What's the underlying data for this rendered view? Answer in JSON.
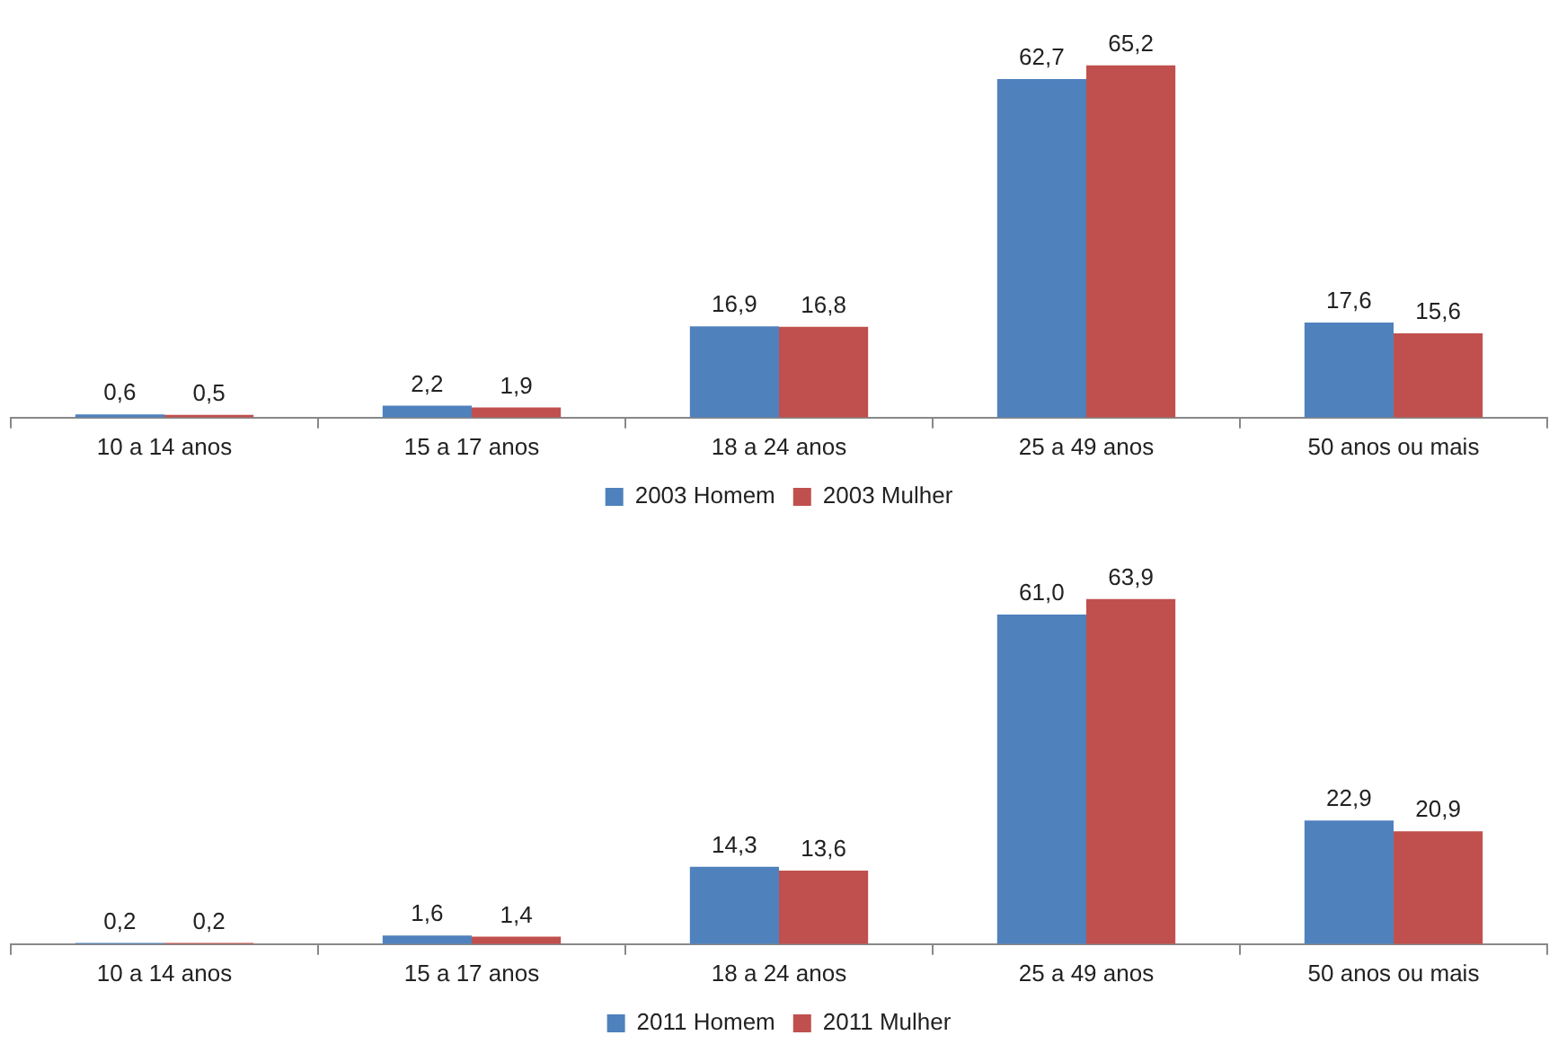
{
  "chart_data": [
    {
      "type": "bar",
      "categories": [
        "10 a 14 anos",
        "15 a 17 anos",
        "18 a 24 anos",
        "25 a 49 anos",
        "50 anos ou mais"
      ],
      "legend": "bottom",
      "series": [
        {
          "name": "2003 Homem",
          "color": "#4f81bd",
          "values": [
            0.6,
            2.2,
            16.9,
            62.7,
            17.6
          ],
          "value_labels": [
            "0,6",
            "2,2",
            "16,9",
            "62,7",
            "17,6"
          ]
        },
        {
          "name": "2003 Mulher",
          "color": "#c0504d",
          "values": [
            0.5,
            1.9,
            16.8,
            65.2,
            15.6
          ],
          "value_labels": [
            "0,5",
            "1,9",
            "16,8",
            "65,2",
            "15,6"
          ]
        }
      ]
    },
    {
      "type": "bar",
      "categories": [
        "10 a 14 anos",
        "15 a 17 anos",
        "18 a 24 anos",
        "25 a 49 anos",
        "50 anos ou mais"
      ],
      "legend": "bottom",
      "series": [
        {
          "name": "2011 Homem",
          "color": "#4f81bd",
          "values": [
            0.2,
            1.6,
            14.3,
            61.0,
            22.9
          ],
          "value_labels": [
            "0,2",
            "1,6",
            "14,3",
            "61,0",
            "22,9"
          ]
        },
        {
          "name": "2011 Mulher",
          "color": "#c0504d",
          "values": [
            0.2,
            1.4,
            13.6,
            63.9,
            20.9
          ],
          "value_labels": [
            "0,2",
            "1,4",
            "13,6",
            "63,9",
            "20,9"
          ]
        }
      ]
    }
  ]
}
